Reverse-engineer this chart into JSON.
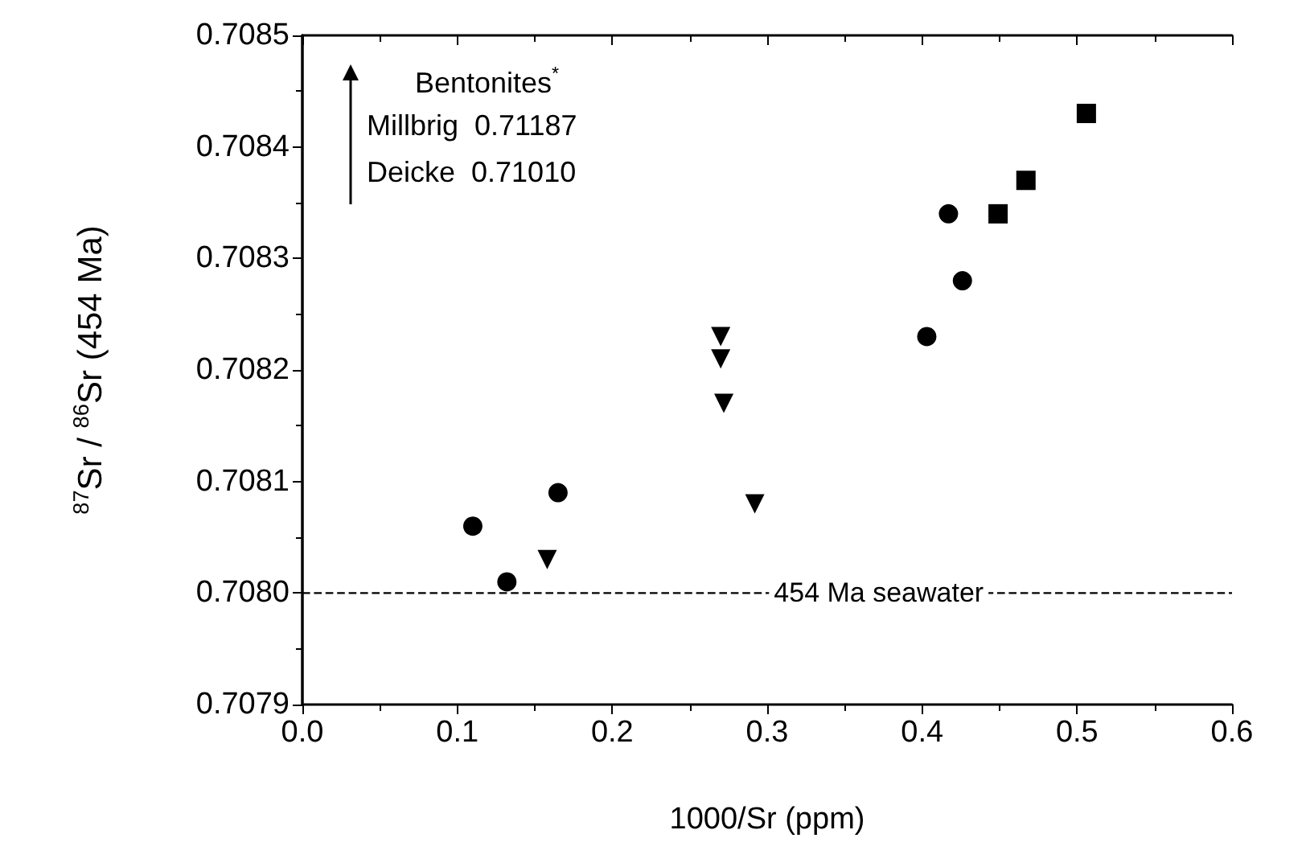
{
  "chart_data": {
    "type": "scatter",
    "xlabel": "1000/Sr (ppm)",
    "ylabel": "$^{87}$Sr / $^{86}$Sr (454 Ma)",
    "xlim": [
      0,
      0.6
    ],
    "xticks": [
      {
        "value": 0,
        "label": "0.0"
      },
      0.1,
      0.2,
      0.3,
      0.4,
      0.5,
      0.6
    ],
    "ylim": [
      0.7079,
      0.7085
    ],
    "yticks": [
      0.7079,
      {
        "value": 0.708,
        "label": "0.7080"
      },
      0.7081,
      0.7082,
      0.7083,
      0.7084,
      0.7085
    ],
    "grid": false,
    "series": [
      {
        "marker": "circle",
        "color": "#000000",
        "x": [
          0.11,
          0.132,
          0.165
        ],
        "values": [
          0.70806,
          0.70801,
          0.70809
        ]
      },
      {
        "marker": "triangle",
        "color": "#000000",
        "x": [
          0.158,
          0.27,
          0.27,
          0.272,
          0.292
        ],
        "values": [
          0.70803,
          0.70823,
          0.70821,
          0.70817,
          0.70808
        ]
      },
      {
        "marker": "circle",
        "color": "#000000",
        "x": [
          0.403,
          0.417,
          0.426
        ],
        "values": [
          0.70823,
          0.70834,
          0.70828
        ]
      },
      {
        "marker": "square",
        "color": "#000000",
        "x": [
          0.449,
          0.467,
          0.506
        ],
        "values": [
          0.70834,
          0.70837,
          0.70843
        ]
      }
    ],
    "ref_lines": [
      {
        "axis": "y",
        "value": 0.708,
        "label": "454 Ma seawater",
        "line_style": "dashed",
        "color": "#000000"
      }
    ],
    "annotations": [
      "Bentonites$^{*}$",
      "Millbrig  0.71187",
      "Deicke  0.71010"
    ]
  }
}
